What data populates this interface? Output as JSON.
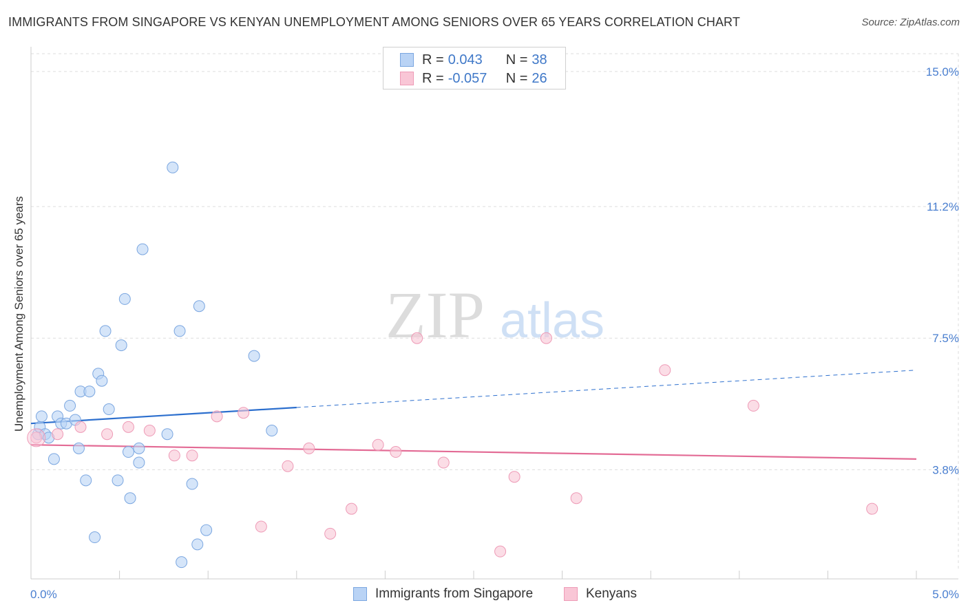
{
  "header": {
    "title": "IMMIGRANTS FROM SINGAPORE VS KENYAN UNEMPLOYMENT AMONG SENIORS OVER 65 YEARS CORRELATION CHART",
    "source": "Source: ZipAtlas.com"
  },
  "watermark": {
    "zip": "ZIP",
    "atlas": "atlas"
  },
  "legend": {
    "series1": {
      "r_label": "R =",
      "r_value": "0.043",
      "n_label": "N =",
      "n_value": "38"
    },
    "series2": {
      "r_label": "R =",
      "r_value": "-0.057",
      "n_label": "N =",
      "n_value": "26"
    }
  },
  "colors": {
    "blue_fill": "#b9d3f5",
    "blue_stroke": "#7aa6e0",
    "blue_line": "#2c6fce",
    "pink_fill": "#f9c6d6",
    "pink_stroke": "#ee9ab6",
    "pink_line": "#e36b95",
    "grid": "#dddddd",
    "tick_text": "#4a7fd0"
  },
  "chart_data": {
    "type": "scatter",
    "title": "IMMIGRANTS FROM SINGAPORE VS KENYAN UNEMPLOYMENT AMONG SENIORS OVER 65 YEARS CORRELATION CHART",
    "xlabel": "",
    "ylabel": "Unemployment Among Seniors over 65 years",
    "xlim": [
      0,
      5.0
    ],
    "ylim": [
      1.0,
      15.5
    ],
    "x_tick_labels": [
      "0.0%",
      "5.0%"
    ],
    "y_ticks": [
      3.8,
      7.5,
      11.2,
      15.0
    ],
    "y_tick_labels": [
      "3.8%",
      "7.5%",
      "11.2%",
      "15.0%"
    ],
    "series": [
      {
        "name": "Immigrants from Singapore",
        "color": "blue",
        "points": [
          [
            0.04,
            4.8
          ],
          [
            0.05,
            5.0
          ],
          [
            0.06,
            5.3
          ],
          [
            0.08,
            4.8
          ],
          [
            0.1,
            4.7
          ],
          [
            0.13,
            4.1
          ],
          [
            0.15,
            5.3
          ],
          [
            0.17,
            5.1
          ],
          [
            0.2,
            5.1
          ],
          [
            0.22,
            5.6
          ],
          [
            0.25,
            5.2
          ],
          [
            0.27,
            4.4
          ],
          [
            0.28,
            6.0
          ],
          [
            0.31,
            3.5
          ],
          [
            0.33,
            6.0
          ],
          [
            0.36,
            1.9
          ],
          [
            0.38,
            6.5
          ],
          [
            0.4,
            6.3
          ],
          [
            0.42,
            7.7
          ],
          [
            0.44,
            5.5
          ],
          [
            0.49,
            3.5
          ],
          [
            0.51,
            7.3
          ],
          [
            0.53,
            8.6
          ],
          [
            0.55,
            4.3
          ],
          [
            0.56,
            3.0
          ],
          [
            0.61,
            4.4
          ],
          [
            0.61,
            4.0
          ],
          [
            0.63,
            10.0
          ],
          [
            0.77,
            4.8
          ],
          [
            0.8,
            12.3
          ],
          [
            0.84,
            7.7
          ],
          [
            0.85,
            1.2
          ],
          [
            0.91,
            3.4
          ],
          [
            0.94,
            1.7
          ],
          [
            0.95,
            8.4
          ],
          [
            0.99,
            2.1
          ],
          [
            1.26,
            7.0
          ],
          [
            1.36,
            4.9
          ]
        ]
      },
      {
        "name": "Kenyans",
        "color": "pink",
        "points": [
          [
            0.03,
            4.7
          ],
          [
            0.15,
            4.8
          ],
          [
            0.28,
            5.0
          ],
          [
            0.43,
            4.8
          ],
          [
            0.55,
            5.0
          ],
          [
            0.67,
            4.9
          ],
          [
            0.81,
            4.2
          ],
          [
            0.91,
            4.2
          ],
          [
            1.05,
            5.3
          ],
          [
            1.2,
            5.4
          ],
          [
            1.3,
            2.2
          ],
          [
            1.45,
            3.9
          ],
          [
            1.57,
            4.4
          ],
          [
            1.69,
            2.0
          ],
          [
            1.81,
            2.7
          ],
          [
            1.96,
            4.5
          ],
          [
            2.06,
            4.3
          ],
          [
            2.18,
            7.5
          ],
          [
            2.33,
            4.0
          ],
          [
            2.65,
            1.5
          ],
          [
            2.73,
            3.6
          ],
          [
            2.91,
            7.5
          ],
          [
            3.08,
            3.0
          ],
          [
            3.58,
            6.6
          ],
          [
            4.08,
            5.6
          ],
          [
            4.75,
            2.7
          ]
        ]
      }
    ],
    "trend_lines": [
      {
        "series": "Immigrants from Singapore",
        "solid_x": [
          0.0,
          1.5
        ],
        "dashed_x": [
          1.5,
          5.0
        ],
        "y_at_x0": 5.1,
        "y_at_x5": 6.6
      },
      {
        "series": "Kenyans",
        "solid_x": [
          0.0,
          5.0
        ],
        "y_at_x0": 4.5,
        "y_at_x5": 4.1
      }
    ]
  },
  "bottom_legend": {
    "item1": "Immigrants from Singapore",
    "item2": "Kenyans"
  }
}
